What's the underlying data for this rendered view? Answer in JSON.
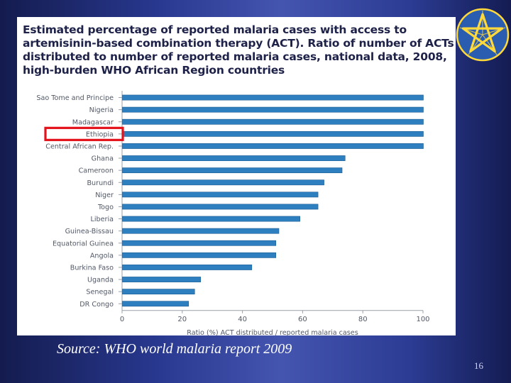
{
  "slide": {
    "source": "Source: WHO world malaria report 2009",
    "slide_number": "16",
    "highlight_color": "#e4121b",
    "highlight_category": "Ethiopia",
    "emblem_icon": "pentagram-star-emblem-icon"
  },
  "chart_data": {
    "type": "bar",
    "orientation": "horizontal",
    "title": "Estimated percentage of reported malaria cases with access to artemisinin-based combination therapy (ACT). Ratio of number of ACTs distributed to number of reported malaria cases, national data, 2008, high-burden WHO African Region countries",
    "xlabel": "Ratio (%) ACT distributed / reported malaria cases",
    "ylabel": "",
    "xlim": [
      0,
      100
    ],
    "xticks": [
      0,
      20,
      40,
      60,
      80,
      100
    ],
    "grid": false,
    "bar_color": "#2e7fc0",
    "categories": [
      "Sao Tome and Principe",
      "Nigeria",
      "Madagascar",
      "Ethiopia",
      "Central African Rep.",
      "Ghana",
      "Cameroon",
      "Burundi",
      "Niger",
      "Togo",
      "Liberia",
      "Guinea-Bissau",
      "Equatorial Guinea",
      "Angola",
      "Burkina Faso",
      "Uganda",
      "Senegal",
      "DR Congo"
    ],
    "values": [
      100,
      100,
      100,
      100,
      100,
      74,
      73,
      67,
      65,
      65,
      59,
      52,
      51,
      51,
      43,
      26,
      24,
      22
    ]
  }
}
